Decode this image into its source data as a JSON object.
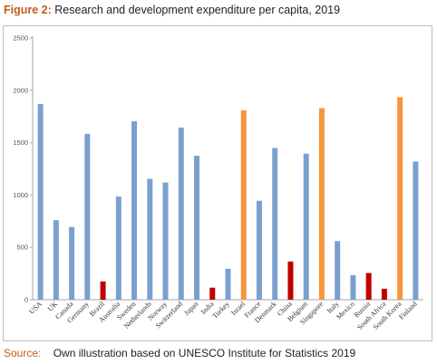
{
  "figure": {
    "label": "Figure 2:",
    "title": "Research and development expenditure per capita, 2019",
    "source_label": "Source:",
    "source_text": "Own illustration based on UNESCO Institute for Statistics 2019"
  },
  "chart_data": {
    "type": "bar",
    "title": "Research and development expenditure per capita, 2019",
    "xlabel": "",
    "ylabel": "",
    "ylim": [
      0,
      2500
    ],
    "yticks": [
      0,
      500,
      1000,
      1500,
      2000,
      2500
    ],
    "grid": false,
    "legend": "none",
    "categories": [
      "USA",
      "UK",
      "Canada",
      "Germany",
      "Brazil",
      "Australia",
      "Sweden",
      "Netherlands",
      "Norway",
      "Switzerland",
      "Japan",
      "India",
      "Turkey",
      "Israel",
      "France",
      "Denmark",
      "China",
      "Belgium",
      "Singapore",
      "Italy",
      "Mexico",
      "Russia",
      "South Africa",
      "South Korea",
      "Finland"
    ],
    "values": [
      1870,
      760,
      695,
      1585,
      175,
      985,
      1705,
      1155,
      1120,
      1645,
      1375,
      115,
      295,
      1810,
      945,
      1450,
      365,
      1395,
      1830,
      560,
      235,
      255,
      105,
      1935,
      1320
    ],
    "colors": [
      "#7aa0d0",
      "#7aa0d0",
      "#7aa0d0",
      "#7aa0d0",
      "#c00000",
      "#7aa0d0",
      "#7aa0d0",
      "#7aa0d0",
      "#7aa0d0",
      "#7aa0d0",
      "#7aa0d0",
      "#c00000",
      "#7aa0d0",
      "#f7953b",
      "#7aa0d0",
      "#7aa0d0",
      "#c00000",
      "#7aa0d0",
      "#f7953b",
      "#7aa0d0",
      "#7aa0d0",
      "#c00000",
      "#c00000",
      "#f7953b",
      "#7aa0d0"
    ],
    "axis_color": "#a6a6a6"
  }
}
